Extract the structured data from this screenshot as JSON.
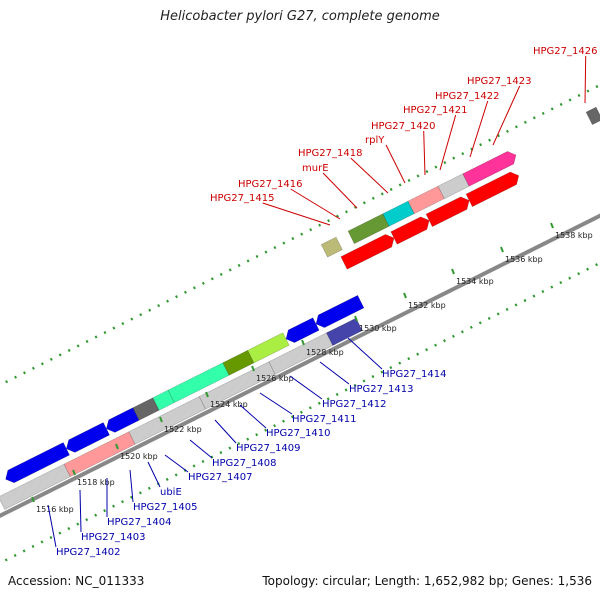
{
  "title": "Helicobacter pylori G27, complete genome",
  "footer": {
    "accession": "Accession: NC_011333",
    "info": "Topology: circular; Length: 1,652,982 bp; Genes: 1,536"
  },
  "colors": {
    "forward_default": "#ff0000",
    "reverse_default": "#0000ff",
    "forward_label": "#cc0000",
    "reverse_label": "#0000aa",
    "backbone": "#888888",
    "gc_skew": "#339933"
  },
  "tick_labels": [
    "1516 kbp",
    "1518 kbp",
    "1520 kbp",
    "1522 kbp",
    "1524 kbp",
    "1526 kbp",
    "1528 kbp",
    "1530 kbp",
    "1532 kbp",
    "1534 kbp",
    "1536 kbp",
    "1538 kbp"
  ],
  "forward_gene_labels": [
    "HPG27_1415",
    "HPG27_1416",
    "murE",
    "HPG27_1418",
    "rplY",
    "HPG27_1420",
    "HPG27_1421",
    "HPG27_1422",
    "HPG27_1423",
    "HPG27_1426"
  ],
  "reverse_gene_labels": [
    "HPG27_1402",
    "HPG27_1403",
    "HPG27_1404",
    "HPG27_1405",
    "ubiE",
    "HPG27_1407",
    "HPG27_1408",
    "HPG27_1409",
    "HPG27_1410",
    "HPG27_1411",
    "HPG27_1412",
    "HPG27_1413",
    "HPG27_1414"
  ]
}
